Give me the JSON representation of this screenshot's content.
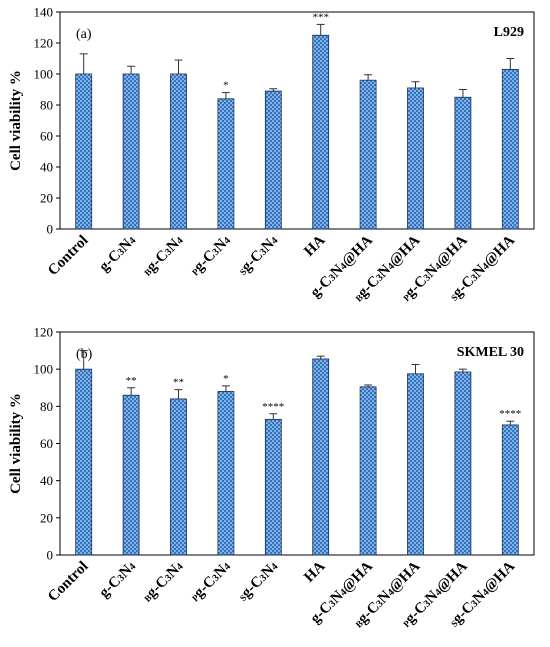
{
  "chart_data": [
    {
      "type": "bar",
      "panel_tag": "(a)",
      "cell_line": "L929",
      "ylabel": "Cell viability %",
      "ylim": [
        0,
        140
      ],
      "yticks": [
        0,
        20,
        40,
        60,
        80,
        100,
        120,
        140
      ],
      "categories": [
        "Control",
        "g-C3N4",
        "Bg-C3N4",
        "Pg-C3N4",
        "Sg-C3N4",
        "HA",
        "g-C3N4@HA",
        "Bg-C3N4@HA",
        "Pg-C3N4@HA",
        "Sg-C3N4@HA"
      ],
      "values": [
        100,
        100,
        100,
        84,
        89,
        125,
        96,
        91,
        85,
        103
      ],
      "errors": [
        13,
        5,
        9,
        4,
        1.5,
        7,
        3.5,
        4,
        5,
        7
      ],
      "significance": [
        "",
        "",
        "",
        "*",
        "",
        "***",
        "",
        "",
        "",
        ""
      ],
      "bar_color": "#2e75c6",
      "bar_pattern": "white dots"
    },
    {
      "type": "bar",
      "panel_tag": "(b)",
      "cell_line": "SKMEL 30",
      "ylabel": "Cell viability %",
      "ylim": [
        0,
        120
      ],
      "yticks": [
        0,
        20,
        40,
        60,
        80,
        100,
        120
      ],
      "categories": [
        "Control",
        "g-C3N4",
        "Bg-C3N4",
        "Pg-C3N4",
        "Sg-C3N4",
        "HA",
        "g-C3N4@HA",
        "Bg-C3N4@HA",
        "Pg-C3N4@HA",
        "Sg-C3N4@HA"
      ],
      "values": [
        100,
        86,
        84,
        88,
        73,
        105.5,
        90.5,
        97.5,
        98.5,
        70
      ],
      "errors": [
        10,
        4,
        5,
        3,
        3,
        1.5,
        1,
        5,
        1.5,
        2
      ],
      "significance": [
        "",
        "**",
        "**",
        "*",
        "****",
        "",
        "",
        "",
        "",
        "****"
      ],
      "bar_color": "#2e75c6",
      "bar_pattern": "white dots"
    }
  ]
}
